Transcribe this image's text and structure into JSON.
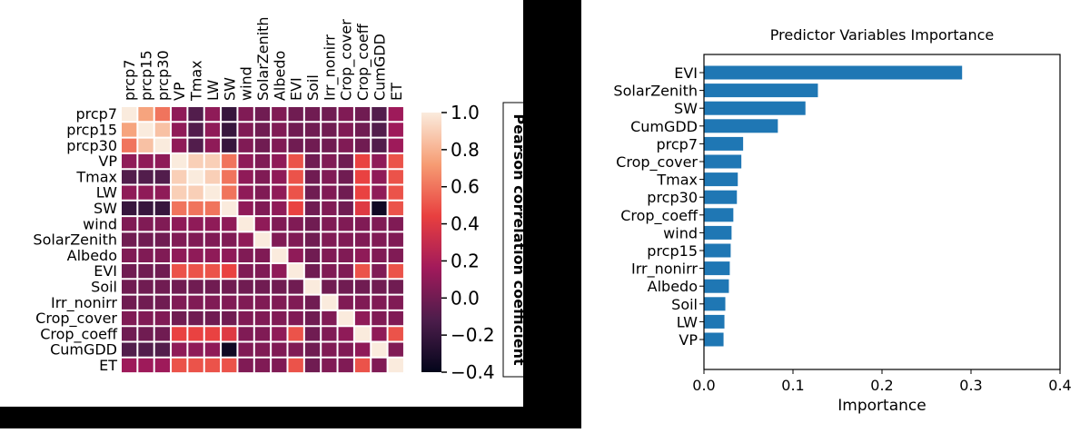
{
  "chart_data": [
    {
      "type": "heatmap",
      "variables": [
        "prcp7",
        "prcp15",
        "prcp30",
        "VP",
        "Tmax",
        "LW",
        "SW",
        "wind",
        "SolarZenith",
        "Albedo",
        "EVI",
        "Soil",
        "Irr_nonirr",
        "Crop_cover",
        "Crop_coeff",
        "CumGDD",
        "ET"
      ],
      "colorbar": {
        "label": "Pearson correlation coefficient",
        "ticks": [
          "1.0",
          "0.8",
          "0.6",
          "0.4",
          "0.2",
          "0.0",
          "−0.2",
          "−0.4"
        ],
        "tick_values": [
          1.0,
          0.8,
          0.6,
          0.4,
          0.2,
          0.0,
          -0.2,
          -0.4
        ],
        "range": [
          -0.4,
          1.0
        ],
        "colors": [
          "#03051a",
          "#4c1d4b",
          "#a11a5b",
          "#e83f3f",
          "#f69c73",
          "#faebdd"
        ]
      },
      "matrix": [
        [
          1.0,
          0.75,
          0.6,
          0.1,
          -0.1,
          0.1,
          -0.2,
          0.05,
          0.0,
          0.05,
          0.0,
          0.0,
          0.0,
          0.05,
          0.0,
          -0.1,
          0.15
        ],
        [
          0.75,
          1.0,
          0.85,
          0.1,
          -0.1,
          0.1,
          -0.2,
          0.05,
          0.0,
          0.05,
          0.0,
          0.0,
          0.0,
          0.05,
          0.0,
          -0.1,
          0.15
        ],
        [
          0.6,
          0.85,
          1.0,
          0.1,
          -0.1,
          0.1,
          -0.2,
          0.05,
          0.0,
          0.05,
          0.0,
          0.0,
          0.0,
          0.05,
          0.0,
          -0.1,
          0.15
        ],
        [
          0.1,
          0.1,
          0.1,
          1.0,
          0.9,
          0.9,
          0.6,
          0.1,
          0.05,
          0.1,
          0.5,
          0.0,
          0.05,
          0.0,
          0.45,
          0.1,
          0.5
        ],
        [
          -0.1,
          -0.1,
          -0.1,
          0.9,
          1.0,
          0.9,
          0.6,
          0.1,
          0.05,
          0.1,
          0.5,
          0.0,
          0.05,
          0.0,
          0.45,
          0.1,
          0.5
        ],
        [
          0.1,
          0.1,
          0.1,
          0.9,
          0.9,
          1.0,
          0.6,
          0.1,
          0.05,
          0.1,
          0.5,
          0.0,
          0.05,
          0.0,
          0.45,
          0.1,
          0.5
        ],
        [
          -0.2,
          -0.2,
          -0.2,
          0.6,
          0.6,
          0.6,
          1.0,
          0.1,
          0.05,
          0.1,
          0.45,
          0.0,
          0.05,
          0.0,
          0.4,
          -0.35,
          0.5
        ],
        [
          0.05,
          0.05,
          0.05,
          0.1,
          0.1,
          0.1,
          0.1,
          1.0,
          0.1,
          0.05,
          0.05,
          0.0,
          0.05,
          0.05,
          0.05,
          0.05,
          0.05
        ],
        [
          0.0,
          0.0,
          0.0,
          0.05,
          0.05,
          0.05,
          0.05,
          0.1,
          1.0,
          0.05,
          0.05,
          0.0,
          0.05,
          0.05,
          0.05,
          0.05,
          0.05
        ],
        [
          0.05,
          0.05,
          0.05,
          0.1,
          0.1,
          0.1,
          0.1,
          0.05,
          0.05,
          1.0,
          0.1,
          0.0,
          0.05,
          0.05,
          0.1,
          0.05,
          0.05
        ],
        [
          0.0,
          0.0,
          0.0,
          0.5,
          0.5,
          0.5,
          0.45,
          0.05,
          0.05,
          0.1,
          1.0,
          0.0,
          0.05,
          0.05,
          0.5,
          0.05,
          0.5
        ],
        [
          0.0,
          0.0,
          0.0,
          0.0,
          0.0,
          0.0,
          0.0,
          0.0,
          0.0,
          0.0,
          0.0,
          1.0,
          0.0,
          0.0,
          0.0,
          0.0,
          0.0
        ],
        [
          0.0,
          0.0,
          0.0,
          0.05,
          0.05,
          0.05,
          0.05,
          0.05,
          0.05,
          0.05,
          0.05,
          0.0,
          1.0,
          0.05,
          0.05,
          0.05,
          0.05
        ],
        [
          0.05,
          0.05,
          0.05,
          0.0,
          0.0,
          0.0,
          0.0,
          0.05,
          0.05,
          0.05,
          0.05,
          0.0,
          0.05,
          1.0,
          0.1,
          0.05,
          0.05
        ],
        [
          0.0,
          0.0,
          0.0,
          0.45,
          0.45,
          0.45,
          0.4,
          0.05,
          0.05,
          0.1,
          0.5,
          0.0,
          0.05,
          0.1,
          1.0,
          0.1,
          0.5
        ],
        [
          -0.1,
          -0.1,
          -0.1,
          0.1,
          0.1,
          0.1,
          -0.35,
          0.05,
          0.05,
          0.05,
          0.05,
          0.0,
          0.05,
          0.05,
          0.1,
          1.0,
          0.05
        ],
        [
          0.15,
          0.15,
          0.15,
          0.5,
          0.5,
          0.5,
          0.5,
          0.05,
          0.05,
          0.05,
          0.5,
          0.0,
          0.05,
          0.05,
          0.5,
          0.05,
          1.0
        ]
      ]
    },
    {
      "type": "bar",
      "orientation": "horizontal",
      "title": "Predictor Variables Importance",
      "xlabel": "Importance",
      "ylabel": "",
      "xlim": [
        0.0,
        0.4
      ],
      "xticks": [
        "0.0",
        "0.1",
        "0.2",
        "0.3",
        "0.4"
      ],
      "xtick_values": [
        0.0,
        0.1,
        0.2,
        0.3,
        0.4
      ],
      "color": "#1f77b4",
      "categories": [
        "EVI",
        "SolarZenith",
        "SW",
        "CumGDD",
        "prcp7",
        "Crop_cover",
        "Tmax",
        "prcp30",
        "Crop_coeff",
        "wind",
        "prcp15",
        "Irr_nonirr",
        "Albedo",
        "Soil",
        "LW",
        "VP"
      ],
      "values": [
        0.29,
        0.128,
        0.114,
        0.083,
        0.044,
        0.042,
        0.038,
        0.037,
        0.033,
        0.031,
        0.03,
        0.029,
        0.028,
        0.024,
        0.023,
        0.022
      ]
    }
  ]
}
